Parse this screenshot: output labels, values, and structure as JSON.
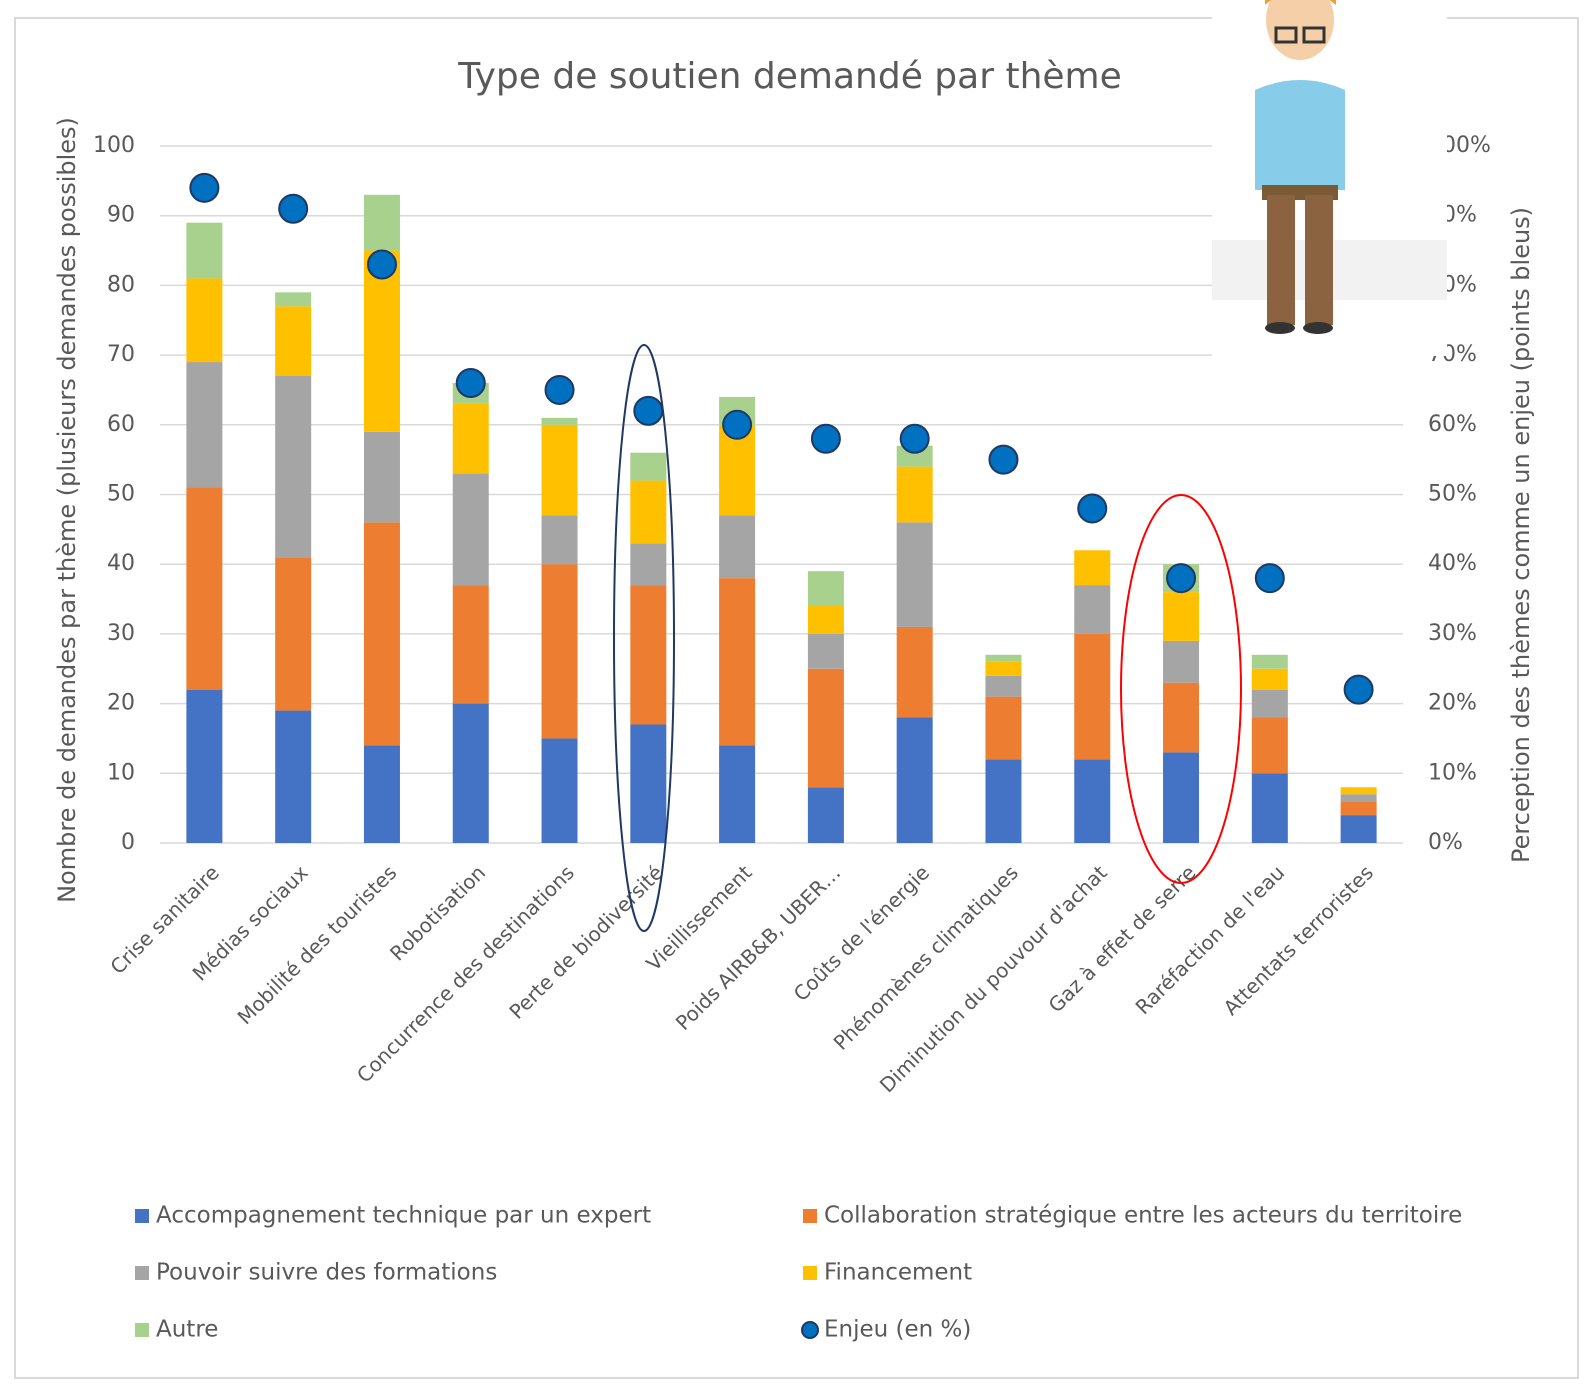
{
  "chart_data": {
    "type": "bar",
    "stacked": true,
    "title": "Type de soutien demandé par thème",
    "y_label": "Nombre de demandes par thème (plusieurs demandes possibles)",
    "y2_label": "Perception des thèmes comme un enjeu (points bleus)",
    "categories": [
      "Crise sanitaire",
      "Médias sociaux",
      "Mobilité des touristes",
      "Robotisation",
      "Concurrence des destinations",
      "Perte de biodiversité",
      "Vieillissement",
      "Poids  AIRB&B, UBER…",
      "Coûts de l'énergie",
      "Phénomènes climatiques",
      "Diminution du pouvour d'achat",
      "Gaz à effet de serre",
      "Raréfaction de l'eau",
      "Attentats terroristes"
    ],
    "series": [
      {
        "name": "Accompagnement technique par un expert",
        "color": "#4472c4",
        "values": [
          22,
          19,
          14,
          20,
          15,
          17,
          14,
          8,
          18,
          12,
          12,
          13,
          10,
          4
        ]
      },
      {
        "name": "Collaboration stratégique entre les acteurs du territoire",
        "color": "#ed7d31",
        "values": [
          29,
          22,
          32,
          17,
          25,
          20,
          24,
          17,
          13,
          9,
          18,
          10,
          8,
          2
        ]
      },
      {
        "name": "Pouvoir suivre des formations",
        "color": "#a5a5a5",
        "values": [
          18,
          26,
          13,
          16,
          7,
          6,
          9,
          5,
          15,
          3,
          7,
          6,
          4,
          1
        ]
      },
      {
        "name": "Financement",
        "color": "#ffc000",
        "values": [
          12,
          10,
          26,
          10,
          13,
          9,
          13,
          4,
          8,
          2,
          5,
          7,
          3,
          1
        ]
      },
      {
        "name": "Autre",
        "color": "#a9d18e",
        "values": [
          8,
          2,
          8,
          3,
          1,
          4,
          4,
          5,
          3,
          1,
          0,
          4,
          2,
          0
        ]
      },
      {
        "name": "Enjeu (en %)",
        "color": "#0070c0",
        "type": "scatter",
        "axis": "y2",
        "values": [
          94,
          91,
          83,
          66,
          65,
          62,
          60,
          58,
          58,
          55,
          48,
          38,
          38,
          22
        ]
      }
    ],
    "ylim": [
      0,
      100
    ],
    "yticks": [
      0,
      10,
      20,
      30,
      40,
      50,
      60,
      70,
      80,
      90,
      100
    ],
    "y2lim": [
      0,
      100
    ],
    "y2ticks": [
      {
        "value": 0,
        "label": "0%"
      },
      {
        "value": 10,
        "label": "10%"
      },
      {
        "value": 20,
        "label": "20%"
      },
      {
        "value": 30,
        "label": "30%"
      },
      {
        "value": 40,
        "label": "40%"
      },
      {
        "value": 50,
        "label": "50%"
      },
      {
        "value": 60,
        "label": "60%"
      },
      {
        "value": 70,
        "label": "70%"
      },
      {
        "value": 80,
        "label": "80%"
      },
      {
        "value": 90,
        "label": "90%"
      },
      {
        "value": 100,
        "label": "100%"
      }
    ],
    "grid": true
  }
}
